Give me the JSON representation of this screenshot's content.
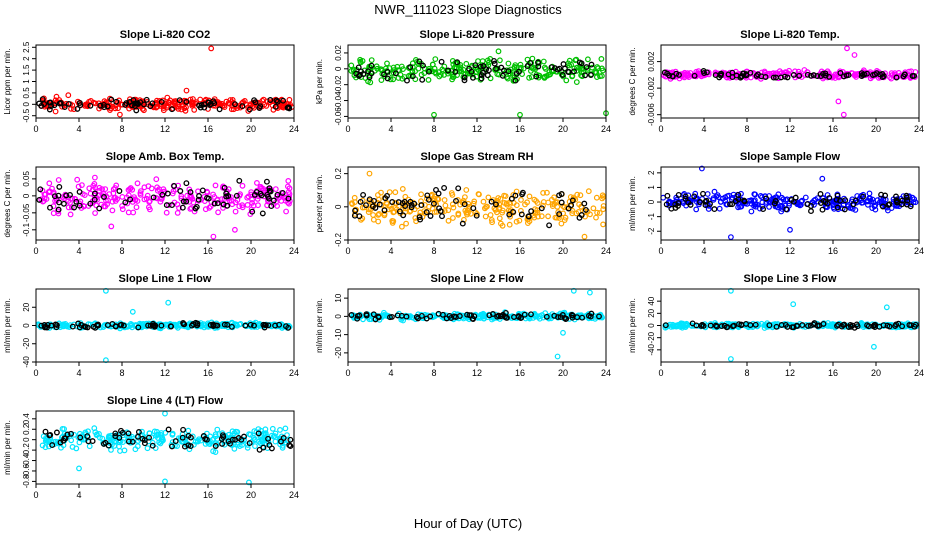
{
  "figure": {
    "title": "NWR_111023  Slope Diagnostics",
    "xlabel": "Hour of Day (UTC)"
  },
  "chart_data": [
    {
      "type": "scatter",
      "title": "Slope Li-820 CO2",
      "ylabel": "Licor ppm per min.",
      "xlim": [
        0,
        24
      ],
      "ylim": [
        -0.6,
        2.6
      ],
      "yticks": [
        -0.5,
        0,
        0.5,
        1,
        1.5,
        2,
        2.5
      ],
      "xticks": [
        0,
        4,
        8,
        12,
        16,
        20,
        24
      ],
      "grid": false,
      "color": "#ff0000",
      "band": [
        -0.35,
        0.35
      ],
      "outliers": [
        [
          16.3,
          2.45
        ],
        [
          7.8,
          -0.45
        ],
        [
          14,
          0.6
        ],
        [
          3,
          0.4
        ]
      ],
      "seed": 11
    },
    {
      "type": "scatter",
      "title": "Slope Li-820 Pressure",
      "ylabel": "kPa per min.",
      "xlim": [
        0,
        24
      ],
      "ylim": [
        -0.062,
        0.03
      ],
      "yticks": [
        -0.06,
        -0.04,
        -0.02,
        0,
        0.02
      ],
      "xticks": [
        0,
        4,
        8,
        12,
        16,
        20,
        24
      ],
      "grid": false,
      "color": "#00c000",
      "band": [
        -0.022,
        0.018
      ],
      "outliers": [
        [
          8,
          -0.058
        ],
        [
          16,
          -0.058
        ],
        [
          24,
          -0.056
        ],
        [
          14,
          0.022
        ]
      ],
      "seed": 23
    },
    {
      "type": "scatter",
      "title": "Slope Li-820 Temp.",
      "ylabel": "degrees C per min.",
      "xlim": [
        0,
        24
      ],
      "ylim": [
        -0.0065,
        0.0045
      ],
      "yticks": [
        -0.006,
        -0.002,
        0.002
      ],
      "xticks": [
        0,
        4,
        8,
        12,
        16,
        20,
        24
      ],
      "grid": false,
      "color": "#ff00ff",
      "band": [
        -0.0008,
        0.0008
      ],
      "outliers": [
        [
          17,
          -0.006
        ],
        [
          17.3,
          0.004
        ],
        [
          16.5,
          -0.004
        ],
        [
          18,
          0.003
        ]
      ],
      "seed": 37
    },
    {
      "type": "scatter",
      "title": "Slope Amb. Box Temp.",
      "ylabel": "degrees C per min.",
      "xlim": [
        0,
        24
      ],
      "ylim": [
        -0.13,
        0.085
      ],
      "yticks": [
        -0.1,
        -0.05,
        0,
        0.05
      ],
      "xticks": [
        0,
        4,
        8,
        12,
        16,
        20,
        24
      ],
      "grid": false,
      "color": "#ff00ff",
      "band": [
        -0.07,
        0.06
      ],
      "outliers": [
        [
          16.5,
          -0.12
        ],
        [
          18.5,
          -0.1
        ],
        [
          7,
          -0.09
        ]
      ],
      "seed": 41
    },
    {
      "type": "scatter",
      "title": "Slope Gas Stream RH",
      "ylabel": "percent per min.",
      "xlim": [
        0,
        24
      ],
      "ylim": [
        -0.2,
        0.24
      ],
      "yticks": [
        -0.2,
        0,
        0.2
      ],
      "xticks": [
        0,
        4,
        8,
        12,
        16,
        20,
        24
      ],
      "grid": false,
      "color": "#ffa500",
      "band": [
        -0.15,
        0.15
      ],
      "outliers": [
        [
          22,
          -0.18
        ],
        [
          2,
          0.2
        ]
      ],
      "seed": 53
    },
    {
      "type": "scatter",
      "title": "Slope Sample Flow",
      "ylabel": "ml/min per min.",
      "xlim": [
        0,
        24
      ],
      "ylim": [
        -2.6,
        2.4
      ],
      "yticks": [
        -2,
        -1,
        0,
        1,
        2
      ],
      "xticks": [
        0,
        4,
        8,
        12,
        16,
        20,
        24
      ],
      "grid": false,
      "color": "#0000ff",
      "band": [
        -0.8,
        0.8
      ],
      "outliers": [
        [
          6.5,
          -2.4
        ],
        [
          3.8,
          2.3
        ],
        [
          12,
          -1.9
        ],
        [
          15,
          1.6
        ]
      ],
      "seed": 61
    },
    {
      "type": "scatter",
      "title": "Slope Line 1 Flow",
      "ylabel": "ml/min per min.",
      "xlim": [
        0,
        24
      ],
      "ylim": [
        -40,
        40
      ],
      "yticks": [
        -40,
        -20,
        0,
        20
      ],
      "xticks": [
        0,
        4,
        8,
        12,
        16,
        20,
        24
      ],
      "grid": false,
      "color": "#00e5ff",
      "band": [
        -4,
        4
      ],
      "outliers": [
        [
          6.5,
          38
        ],
        [
          6.5,
          -38
        ],
        [
          12.3,
          25
        ],
        [
          9,
          15
        ]
      ],
      "seed": 71
    },
    {
      "type": "scatter",
      "title": "Slope Line 2 Flow",
      "ylabel": "ml/min per min.",
      "xlim": [
        0,
        24
      ],
      "ylim": [
        -25,
        15
      ],
      "yticks": [
        -20,
        -10,
        0,
        10
      ],
      "xticks": [
        0,
        4,
        8,
        12,
        16,
        20,
        24
      ],
      "grid": false,
      "color": "#00e5ff",
      "band": [
        -2.5,
        2.5
      ],
      "outliers": [
        [
          19.5,
          -22
        ],
        [
          21,
          14
        ],
        [
          20,
          -9
        ],
        [
          22.5,
          13
        ]
      ],
      "seed": 83
    },
    {
      "type": "scatter",
      "title": "Slope Line 3 Flow",
      "ylabel": "ml/min per min.",
      "xlim": [
        0,
        24
      ],
      "ylim": [
        -60,
        60
      ],
      "yticks": [
        -40,
        -20,
        0,
        20,
        40
      ],
      "xticks": [
        0,
        4,
        8,
        12,
        16,
        20,
        24
      ],
      "grid": false,
      "color": "#00e5ff",
      "band": [
        -5,
        5
      ],
      "outliers": [
        [
          6.5,
          57
        ],
        [
          6.5,
          -55
        ],
        [
          12.3,
          35
        ],
        [
          19.8,
          -35
        ],
        [
          21,
          30
        ]
      ],
      "seed": 97
    },
    {
      "type": "scatter",
      "title": "Slope Line 4 (LT) Flow",
      "ylabel": "ml/min per min.",
      "xlim": [
        0,
        24
      ],
      "ylim": [
        -0.85,
        0.55
      ],
      "yticks": [
        -0.8,
        -0.6,
        -0.4,
        -0.2,
        0,
        0.2,
        0.4
      ],
      "xticks": [
        0,
        4,
        8,
        12,
        16,
        20,
        24
      ],
      "grid": false,
      "color": "#00e5ff",
      "band": [
        -0.28,
        0.28
      ],
      "outliers": [
        [
          12,
          -0.8
        ],
        [
          19.8,
          -0.82
        ],
        [
          12,
          0.5
        ],
        [
          4,
          -0.55
        ]
      ],
      "seed": 103
    }
  ]
}
